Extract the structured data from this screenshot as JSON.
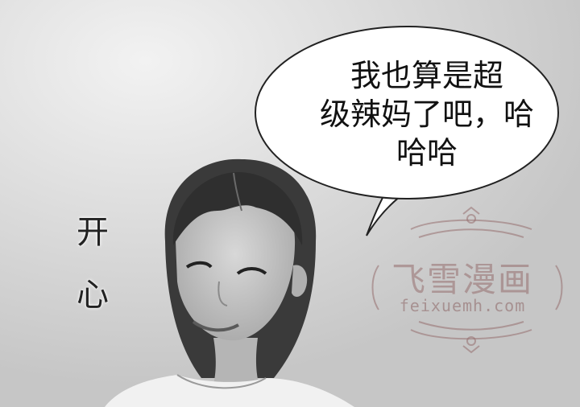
{
  "speech_bubble": {
    "lines": [
      "我也算是超",
      "级辣妈了吧，哈",
      "哈哈"
    ]
  },
  "side_caption": {
    "chars": [
      "开",
      "心"
    ]
  },
  "watermark": {
    "title": "飞雪漫画",
    "url": "feixuemh.com"
  },
  "colors": {
    "bubble_fill": "#ffffff",
    "bubble_stroke": "#222222",
    "watermark": "#a87878"
  }
}
